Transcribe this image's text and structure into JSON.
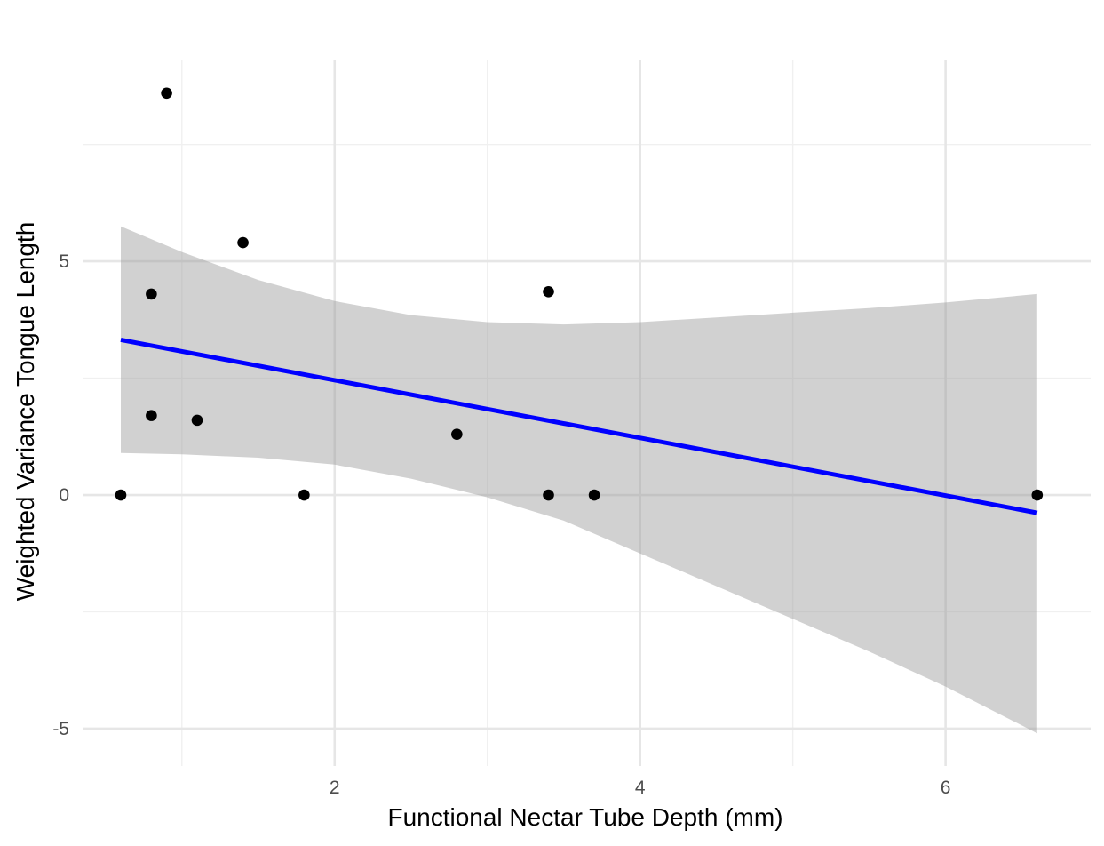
{
  "chart_data": {
    "type": "scatter",
    "title": "",
    "xlabel": "Functional Nectar Tube Depth (mm)",
    "ylabel": "Weighted Variance Tongue Length",
    "xlim": [
      0.35,
      6.95
    ],
    "ylim": [
      -5.8,
      9.3
    ],
    "x_ticks": [
      2,
      4,
      6
    ],
    "x_tick_labels": [
      "2",
      "4",
      "6"
    ],
    "y_ticks": [
      -5,
      0,
      5
    ],
    "y_tick_labels": [
      "-5",
      "0",
      "5"
    ],
    "x_minor_gridlines": [
      1,
      3,
      5
    ],
    "y_minor_gridlines": [
      -2.5,
      2.5,
      7.5
    ],
    "grid": true,
    "points": [
      {
        "x": 0.6,
        "y": 0.0
      },
      {
        "x": 0.8,
        "y": 4.3
      },
      {
        "x": 0.8,
        "y": 1.7
      },
      {
        "x": 0.9,
        "y": 8.6
      },
      {
        "x": 1.1,
        "y": 1.6
      },
      {
        "x": 1.4,
        "y": 5.4
      },
      {
        "x": 1.8,
        "y": 0.0
      },
      {
        "x": 2.8,
        "y": 1.3
      },
      {
        "x": 3.4,
        "y": 4.35
      },
      {
        "x": 3.4,
        "y": 0.0
      },
      {
        "x": 3.7,
        "y": 0.0
      },
      {
        "x": 6.6,
        "y": 0.0
      }
    ],
    "fit": {
      "method": "linear",
      "line_color": "#0000ff",
      "band_color": "#999999",
      "x_range": [
        0.6,
        6.6
      ],
      "intercept": 3.69,
      "slope": -0.617,
      "band": [
        {
          "x": 0.6,
          "lower": 0.9,
          "upper": 5.75
        },
        {
          "x": 1.0,
          "lower": 0.87,
          "upper": 5.2
        },
        {
          "x": 1.5,
          "lower": 0.8,
          "upper": 4.6
        },
        {
          "x": 2.0,
          "lower": 0.65,
          "upper": 4.15
        },
        {
          "x": 2.5,
          "lower": 0.35,
          "upper": 3.85
        },
        {
          "x": 3.0,
          "lower": -0.05,
          "upper": 3.7
        },
        {
          "x": 3.5,
          "lower": -0.55,
          "upper": 3.65
        },
        {
          "x": 4.0,
          "lower": -1.25,
          "upper": 3.7
        },
        {
          "x": 4.5,
          "lower": -1.95,
          "upper": 3.8
        },
        {
          "x": 5.0,
          "lower": -2.65,
          "upper": 3.9
        },
        {
          "x": 5.5,
          "lower": -3.35,
          "upper": 4.0
        },
        {
          "x": 6.0,
          "lower": -4.1,
          "upper": 4.12
        },
        {
          "x": 6.6,
          "lower": -5.1,
          "upper": 4.3
        }
      ]
    },
    "colors": {
      "point": "#000000",
      "grid_major": "#e6e6e6",
      "grid_minor": "#f0f0f0",
      "background": "#ffffff"
    }
  }
}
